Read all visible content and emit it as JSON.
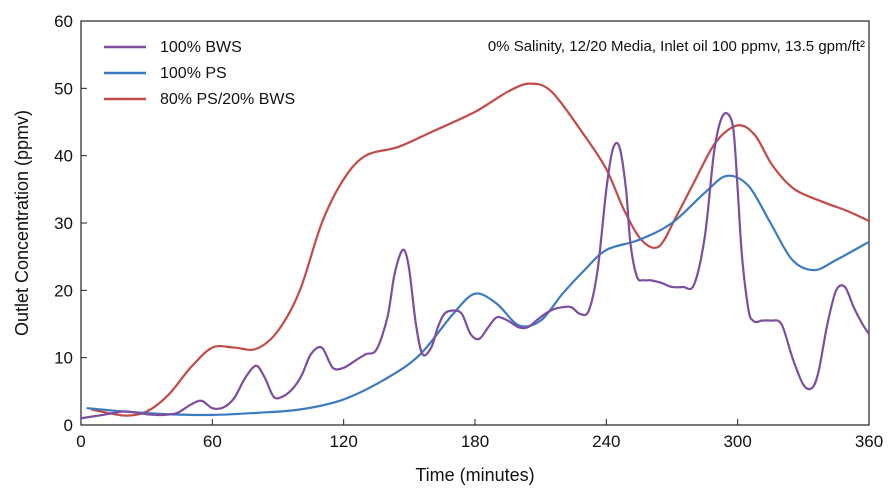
{
  "chart_data": {
    "type": "line",
    "xlabel": "Time (minutes)",
    "ylabel": "Outlet Concentration (ppmv)",
    "xlim": [
      0,
      360
    ],
    "ylim": [
      0,
      60
    ],
    "xticks": [
      0,
      60,
      120,
      180,
      240,
      300,
      360
    ],
    "yticks": [
      0,
      10,
      20,
      30,
      40,
      50,
      60
    ],
    "grid": false,
    "legend_position": "top-left",
    "annotation": "0% Salinity, 12/20 Media, Inlet oil 100 ppmv, 13.5 gpm/ft²",
    "series": [
      {
        "name": "100% BWS",
        "color": "#7d4e9f",
        "x": [
          0,
          10,
          20,
          30,
          38,
          44,
          50,
          55,
          60,
          65,
          70,
          75,
          80,
          84,
          88,
          92,
          97,
          101,
          105,
          110,
          115,
          120,
          125,
          130,
          135,
          140,
          143,
          146,
          148,
          150,
          153,
          156,
          160,
          163,
          166,
          170,
          174,
          178,
          182,
          186,
          190,
          195,
          200,
          204,
          208,
          212,
          216,
          220,
          224,
          228,
          232,
          236,
          240,
          243,
          246,
          249,
          251,
          254,
          257,
          260,
          263,
          266,
          270,
          275,
          280,
          285,
          289,
          292,
          295,
          298,
          300,
          302,
          305,
          307,
          309,
          311,
          315,
          320,
          325,
          330,
          334,
          337,
          341,
          345,
          349,
          353,
          357,
          360
        ],
        "y": [
          1.0,
          1.5,
          2.0,
          1.6,
          1.5,
          1.8,
          3.0,
          3.6,
          2.5,
          2.6,
          4.0,
          7.0,
          8.8,
          7.0,
          4.2,
          4.2,
          5.5,
          7.5,
          10.5,
          11.5,
          8.5,
          8.5,
          9.5,
          10.5,
          11.2,
          16.0,
          22.0,
          25.5,
          25.8,
          23.0,
          15.0,
          10.5,
          11.5,
          14.5,
          16.5,
          17.0,
          16.5,
          13.5,
          12.8,
          14.5,
          16.0,
          15.5,
          14.5,
          14.5,
          15.5,
          16.5,
          17.2,
          17.5,
          17.5,
          16.5,
          17.0,
          23.0,
          35.0,
          41.0,
          41.3,
          35.0,
          27.0,
          22.0,
          21.5,
          21.5,
          21.3,
          21.0,
          20.5,
          20.5,
          20.8,
          28.0,
          40.0,
          45.0,
          46.3,
          44.0,
          35.0,
          25.0,
          17.0,
          15.5,
          15.3,
          15.5,
          15.5,
          15.0,
          10.0,
          6.0,
          5.5,
          8.0,
          15.0,
          20.0,
          20.5,
          17.5,
          15.0,
          13.5
        ]
      },
      {
        "name": "100% PS",
        "color": "#3d7bc0",
        "x": [
          3,
          20,
          40,
          60,
          80,
          100,
          120,
          140,
          155,
          170,
          180,
          190,
          200,
          210,
          220,
          230,
          240,
          255,
          270,
          285,
          295,
          305,
          315,
          325,
          335,
          345,
          360
        ],
        "y": [
          2.5,
          2.0,
          1.6,
          1.5,
          1.8,
          2.3,
          3.8,
          7.0,
          10.5,
          16.5,
          19.5,
          18.0,
          14.8,
          15.5,
          19.5,
          23.0,
          26.0,
          27.5,
          30.0,
          34.5,
          37.0,
          35.5,
          30.0,
          24.5,
          23.0,
          24.5,
          27.2
        ]
      },
      {
        "name": "80% PS/20% BWS",
        "color": "#c24a48",
        "x": [
          5,
          20,
          30,
          40,
          50,
          60,
          70,
          80,
          90,
          100,
          110,
          120,
          130,
          145,
          160,
          180,
          195,
          205,
          215,
          230,
          240,
          248,
          256,
          264,
          272,
          280,
          290,
          300,
          308,
          316,
          326,
          340,
          350,
          360
        ],
        "y": [
          2.3,
          1.4,
          2.0,
          4.5,
          8.5,
          11.5,
          11.5,
          11.3,
          14.0,
          20.0,
          30.0,
          36.5,
          40.0,
          41.3,
          43.5,
          46.5,
          49.5,
          50.7,
          49.5,
          43.0,
          38.0,
          32.0,
          27.5,
          26.5,
          31.0,
          36.0,
          42.0,
          44.5,
          43.0,
          38.5,
          35.0,
          33.0,
          31.8,
          30.3
        ]
      }
    ]
  }
}
